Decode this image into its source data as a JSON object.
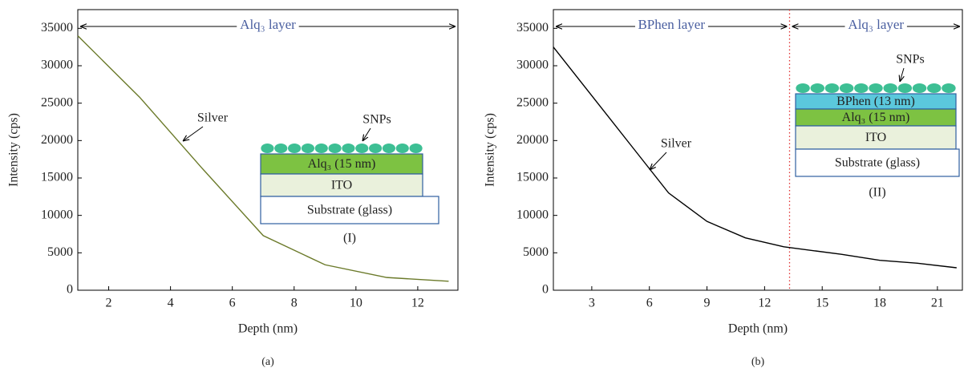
{
  "chart_data": [
    {
      "type": "line",
      "caption": "(a)",
      "x_label": "Depth (nm)",
      "y_label": "Intensity (cps)",
      "x": [
        1,
        3,
        5,
        7,
        9,
        11,
        13
      ],
      "series": [
        {
          "name": "Silver",
          "color": "#6b7a2a",
          "values": [
            34000,
            25800,
            16400,
            7300,
            3400,
            1700,
            1200
          ]
        }
      ],
      "xlim": [
        1,
        13.3
      ],
      "ylim": [
        0,
        37500
      ],
      "xticks": [
        2,
        4,
        6,
        8,
        10,
        12
      ],
      "yticks": [
        0,
        5000,
        10000,
        15000,
        20000,
        25000,
        30000,
        35000
      ],
      "layers": [
        {
          "name": "Alq₃ layer"
        }
      ],
      "inset": {
        "particles_label": "SNPs",
        "label": "(I)",
        "particle_color": "#3dbf94",
        "layers": [
          {
            "label": "Alq₃ (15 nm)",
            "color": "#7dc242"
          },
          {
            "label": "ITO",
            "color": "#eaf1dc"
          },
          {
            "label": "Substrate (glass)",
            "color": "#ffffff"
          }
        ]
      }
    },
    {
      "type": "line",
      "caption": "(b)",
      "x_label": "Depth (nm)",
      "y_label": "Intensity (cps)",
      "x": [
        1,
        3,
        5,
        7,
        9,
        11,
        13,
        16,
        18,
        20,
        22
      ],
      "series": [
        {
          "name": "Silver",
          "color": "#000000",
          "values": [
            32500,
            26000,
            19500,
            13000,
            9200,
            7000,
            5800,
            4800,
            4000,
            3600,
            3000
          ]
        }
      ],
      "xlim": [
        1,
        22.3
      ],
      "ylim": [
        0,
        37500
      ],
      "xticks": [
        3,
        6,
        9,
        12,
        15,
        18,
        21
      ],
      "yticks": [
        0,
        5000,
        10000,
        15000,
        20000,
        25000,
        30000,
        35000
      ],
      "boundary": 13.3,
      "boundary_color": "#e03030",
      "layers": [
        {
          "name": "BPhen layer"
        },
        {
          "name": "Alq₃ layer"
        }
      ],
      "inset": {
        "particles_label": "SNPs",
        "label": "(II)",
        "particle_color": "#3dbf94",
        "layers": [
          {
            "label": "BPhen (13 nm)",
            "color": "#5bc8dc"
          },
          {
            "label": "Alq₃ (15 nm)",
            "color": "#7dc242"
          },
          {
            "label": "ITO",
            "color": "#eaf1dc"
          },
          {
            "label": "Substrate (glass)",
            "color": "#ffffff"
          }
        ]
      }
    }
  ]
}
